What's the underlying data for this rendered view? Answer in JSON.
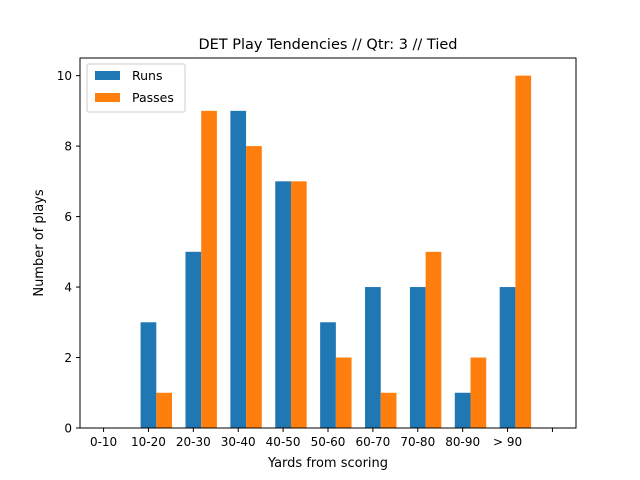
{
  "chart_data": {
    "type": "bar",
    "title": "DET Play Tendencies // Qtr: 3 // Tied",
    "xlabel": "Yards from scoring",
    "ylabel": "Number of plays",
    "categories": [
      "0-10",
      "10-20",
      "20-30",
      "30-40",
      "40-50",
      "50-60",
      "60-70",
      "70-80",
      "80-90",
      "> 90",
      ""
    ],
    "series": [
      {
        "name": "Runs",
        "color": "#1f77b4",
        "values": [
          0,
          3,
          5,
          9,
          7,
          3,
          4,
          4,
          1,
          4,
          0
        ]
      },
      {
        "name": "Passes",
        "color": "#ff7f0e",
        "values": [
          0,
          1,
          9,
          8,
          7,
          2,
          1,
          5,
          2,
          10,
          0
        ]
      }
    ],
    "ylim": [
      0,
      10.5
    ],
    "yticks": [
      0,
      2,
      4,
      6,
      8,
      10
    ],
    "legend": "top-left",
    "grid": false
  }
}
